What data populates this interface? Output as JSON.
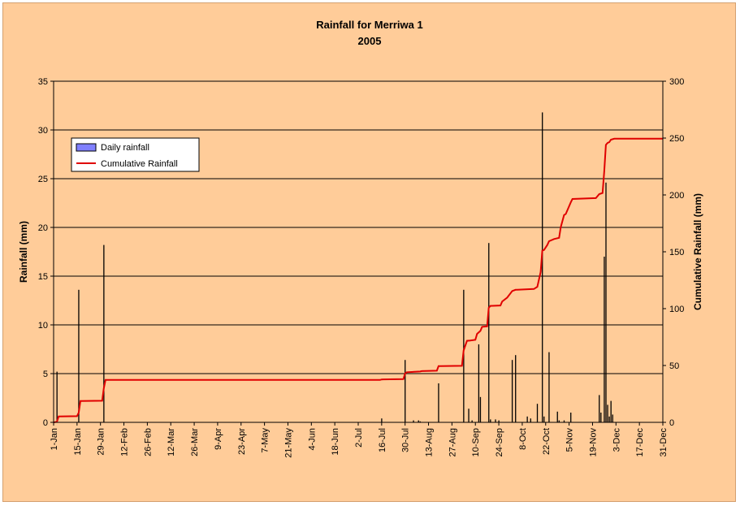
{
  "chart_data": {
    "type": "bar+line",
    "title": "Rainfall for Merriwa 1",
    "subtitle": "2005",
    "ylabel_left": "Rainfall (mm)",
    "ylabel_right": "Cumulative Rainfall  (mm)",
    "ylim_left": [
      0,
      35
    ],
    "yticks_left": [
      "0",
      "5",
      "10",
      "15",
      "20",
      "25",
      "30",
      "35"
    ],
    "ylim_right": [
      0,
      300
    ],
    "yticks_right": [
      "0",
      "50",
      "100",
      "150",
      "200",
      "250",
      "300"
    ],
    "xlim_days": [
      1,
      365
    ],
    "xtick_labels": [
      "1-Jan",
      "15-Jan",
      "29-Jan",
      "12-Feb",
      "26-Feb",
      "12-Mar",
      "26-Mar",
      "9-Apr",
      "23-Apr",
      "7-May",
      "21-May",
      "4-Jun",
      "18-Jun",
      "2-Jul",
      "16-Jul",
      "30-Jul",
      "13-Aug",
      "27-Aug",
      "10-Sep",
      "24-Sep",
      "8-Oct",
      "22-Oct",
      "5-Nov",
      "19-Nov",
      "3-Dec",
      "17-Dec",
      "31-Dec"
    ],
    "grid": "horizontal major",
    "legend_position": "top-left",
    "colors": {
      "bars": "#8080ff",
      "line": "#e00000",
      "background": "#ffcc99"
    },
    "series": [
      {
        "name": "Daily rainfall",
        "type": "bar",
        "x_day_of_year": [
          3,
          16,
          31,
          197,
          211,
          216,
          219,
          220,
          231,
          246,
          249,
          251,
          255,
          256,
          261,
          262,
          265,
          267,
          275,
          277,
          284,
          286,
          290,
          293,
          294,
          297,
          302,
          303,
          306,
          310,
          327,
          328,
          330,
          331,
          332,
          333,
          334,
          335
        ],
        "values": [
          5.2,
          13.6,
          18.2,
          0.4,
          6.4,
          0.2,
          0.2,
          0.1,
          4.0,
          13.6,
          1.4,
          0.2,
          8.0,
          2.6,
          18.4,
          0.3,
          0.3,
          0.2,
          6.4,
          6.9,
          0.6,
          0.4,
          1.9,
          31.8,
          0.6,
          7.2,
          1.1,
          0.2,
          0.2,
          1.0,
          2.8,
          1.0,
          17.0,
          24.6,
          1.8,
          0.6,
          2.2,
          0.8
        ]
      },
      {
        "name": "Cumulative Rainfall",
        "type": "line",
        "axis": "right",
        "x_day_of_year": [
          1,
          3,
          4,
          15,
          16,
          17,
          30,
          31,
          32,
          196,
          197,
          198,
          210,
          211,
          212,
          220,
          221,
          230,
          231,
          232,
          245,
          246,
          248,
          250,
          253,
          254,
          256,
          257,
          260,
          261,
          262,
          268,
          269,
          272,
          275,
          277,
          278,
          288,
          290,
          292,
          293,
          294,
          296,
          297,
          300,
          303,
          304,
          306,
          307,
          310,
          311,
          325,
          327,
          329,
          330,
          331,
          332,
          333,
          334,
          336,
          365
        ],
        "values": [
          0,
          0.5,
          5.2,
          5.4,
          8.5,
          18.8,
          19.0,
          30.0,
          37.3,
          37.3,
          37.7,
          37.8,
          38.0,
          43.0,
          44.1,
          44.7,
          45.1,
          45.4,
          49.4,
          49.4,
          49.7,
          63.3,
          71.7,
          72.0,
          72.6,
          77.8,
          80.4,
          84.0,
          84.4,
          100.8,
          102.4,
          102.8,
          106.3,
          109.7,
          115.5,
          116.6,
          116.6,
          117.3,
          119.2,
          132.3,
          151.0,
          151.6,
          156.0,
          159.3,
          161.2,
          162.3,
          171.6,
          182.3,
          183.2,
          193.5,
          196.4,
          197.2,
          200.7,
          201.7,
          221.0,
          244.0,
          245.8,
          246.4,
          248.6,
          249.4,
          249.4
        ]
      }
    ]
  }
}
